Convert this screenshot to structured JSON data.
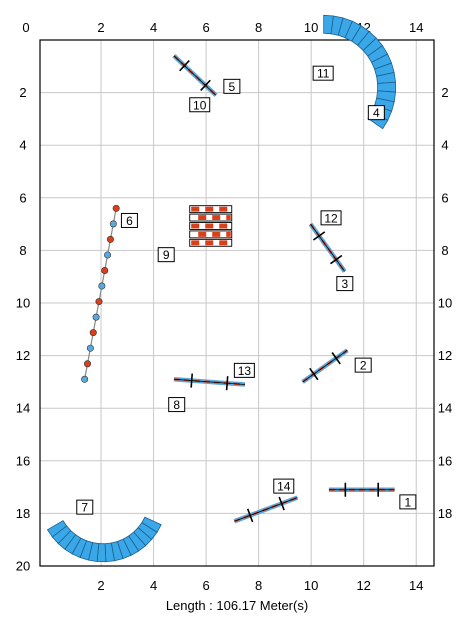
{
  "course": {
    "x_ticks": [
      "0",
      "2",
      "4",
      "6",
      "8",
      "10",
      "12",
      "14"
    ],
    "y_ticks": [
      "2",
      "4",
      "6",
      "8",
      "10",
      "12",
      "14",
      "16",
      "18",
      "20"
    ],
    "length_label": "Length : 106.17 Meter(s)",
    "x_range_m": [
      0,
      15
    ],
    "y_range_m": [
      0,
      20
    ],
    "colors": {
      "tunnel": "#3aa8e8",
      "pole_red": "#d8401c",
      "pole_blue": "#5aa9dd",
      "grid": "#c8c8c8",
      "border": "#000000"
    }
  },
  "obstacles": [
    {
      "num": "1",
      "type": "jump",
      "x1": 11.0,
      "y1": 17.1,
      "x2": 13.5,
      "y2": 17.1,
      "label_x": 13.7,
      "label_y": 17.6
    },
    {
      "num": "2",
      "type": "jump",
      "x1": 10.0,
      "y1": 13.0,
      "x2": 11.7,
      "y2": 11.8,
      "label_x": 12.0,
      "label_y": 12.4
    },
    {
      "num": "3",
      "type": "jump",
      "x1": 10.3,
      "y1": 7.0,
      "x2": 11.6,
      "y2": 8.8,
      "label_x": 11.3,
      "label_y": 9.3
    },
    {
      "num": "5",
      "type": "jump",
      "x1": 5.1,
      "y1": 0.6,
      "x2": 6.7,
      "y2": 2.1,
      "label_x": 7.0,
      "label_y": 1.8
    },
    {
      "num": "8",
      "type": "jump",
      "x1": 5.1,
      "y1": 12.9,
      "x2": 7.8,
      "y2": 13.1,
      "label_x": 4.9,
      "label_y": 13.9
    },
    {
      "num": "12",
      "type": "jump",
      "x1": 10.3,
      "y1": 7.0,
      "x2": 11.6,
      "y2": 8.8,
      "label_x": 10.7,
      "label_y": 6.8
    },
    {
      "num": "13",
      "type": "jump",
      "x1": 5.1,
      "y1": 12.9,
      "x2": 7.8,
      "y2": 13.1,
      "label_x": 7.4,
      "label_y": 12.6
    },
    {
      "num": "14",
      "type": "jump",
      "x1": 7.4,
      "y1": 18.3,
      "x2": 9.8,
      "y2": 17.4,
      "label_x": 8.9,
      "label_y": 17.0
    },
    {
      "num": "4",
      "type": "tunnel",
      "cx": 10.8,
      "cy": 1.8,
      "r": 2.4,
      "a1": -90,
      "a2": 35,
      "label_x": 12.5,
      "label_y": 2.8
    },
    {
      "num": "11",
      "type": "tunnel",
      "cx": 10.8,
      "cy": 1.8,
      "r": 2.4,
      "a1": -90,
      "a2": 35,
      "label_x": 10.4,
      "label_y": 1.3
    },
    {
      "num": "7",
      "type": "tunnel",
      "cx": 2.4,
      "cy": 17.4,
      "r": 2.1,
      "a1": 25,
      "a2": 150,
      "label_x": 1.4,
      "label_y": 17.8
    },
    {
      "num": "6",
      "type": "weave",
      "x1": 2.9,
      "y1": 6.4,
      "x2": 1.7,
      "y2": 12.9,
      "poles": 12,
      "label_x": 3.1,
      "label_y": 6.9
    },
    {
      "num": "9",
      "type": "wall",
      "x": 5.7,
      "y": 6.3,
      "w": 1.6,
      "h": 1.6,
      "label_x": 4.5,
      "label_y": 8.2
    },
    {
      "num": "10",
      "type": "label",
      "label_x": 5.7,
      "label_y": 2.5
    }
  ]
}
